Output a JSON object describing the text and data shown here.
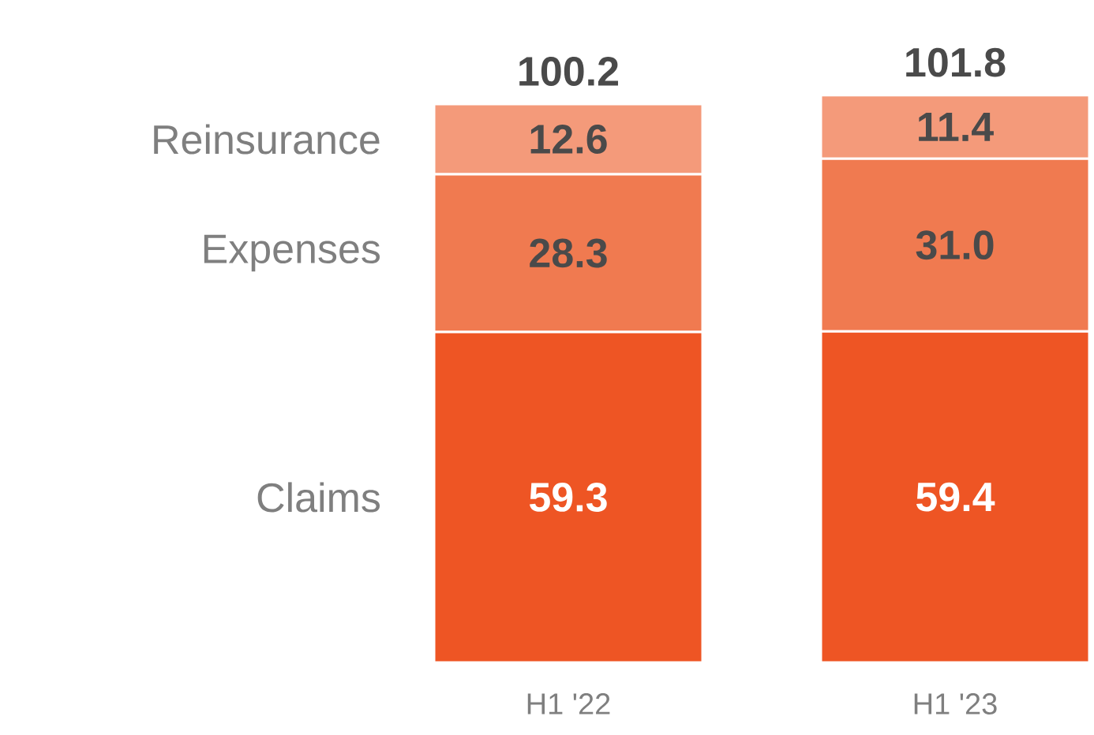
{
  "chart_data": {
    "type": "bar",
    "stacked": true,
    "legend": false,
    "categories": [
      "H1 '22",
      "H1 '23"
    ],
    "series": [
      {
        "name": "Claims",
        "color": "#ee5524",
        "values": [
          59.3,
          59.4
        ],
        "value_labels": [
          "59.3",
          "59.4"
        ]
      },
      {
        "name": "Expenses",
        "color": "#f07a50",
        "values": [
          28.3,
          31.0
        ],
        "value_labels": [
          "28.3",
          "31.0"
        ]
      },
      {
        "name": "Reinsurance",
        "color": "#f49a7a",
        "values": [
          12.6,
          11.4
        ],
        "value_labels": [
          "12.6",
          "11.4"
        ]
      }
    ],
    "totals": [
      "100.2",
      "101.8"
    ]
  }
}
